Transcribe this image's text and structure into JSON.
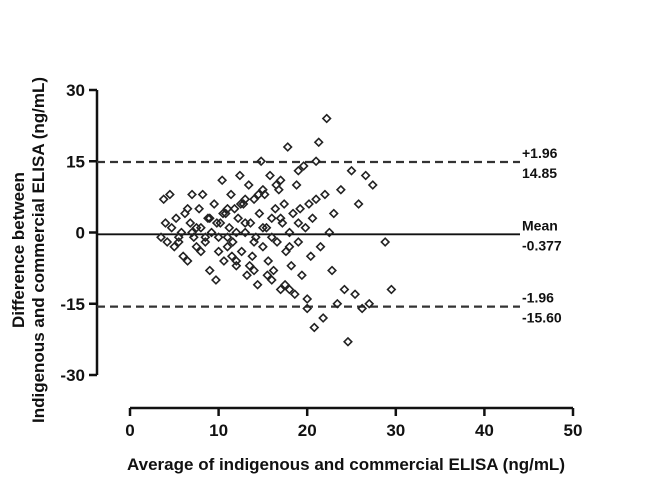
{
  "chart_data": {
    "type": "scatter",
    "title": "",
    "xlabel": "Average of indigenous and commercial ELISA (ng/mL)",
    "ylabel_lines": [
      "Difference between",
      "Indigenous and commercial ELISA (ng/mL)"
    ],
    "xlim": [
      0,
      50
    ],
    "ylim": [
      -30,
      30
    ],
    "x_ticks": [
      0,
      10,
      20,
      30,
      40,
      50
    ],
    "y_ticks": [
      30,
      15,
      0,
      -15,
      -30
    ],
    "grid": false,
    "marker": "open-diamond",
    "reference_lines": [
      {
        "name": "upper",
        "y": 14.85,
        "style": "dashed",
        "label_top": "+1.96",
        "label_bottom": "14.85"
      },
      {
        "name": "mean",
        "y": -0.377,
        "style": "solid",
        "label_top": "Mean",
        "label_bottom": "-0.377"
      },
      {
        "name": "lower",
        "y": -15.6,
        "style": "dashed",
        "label_top": "-1.96",
        "label_bottom": "-15.60"
      }
    ],
    "points": [
      [
        3.5,
        -1
      ],
      [
        3.8,
        7
      ],
      [
        4,
        2
      ],
      [
        4.2,
        -2
      ],
      [
        4.5,
        8
      ],
      [
        4.7,
        1
      ],
      [
        5,
        -3
      ],
      [
        5.2,
        3
      ],
      [
        5.5,
        -1
      ],
      [
        5.8,
        0
      ],
      [
        6,
        -5
      ],
      [
        6.2,
        4
      ],
      [
        6.5,
        -6
      ],
      [
        6.8,
        2
      ],
      [
        7,
        8
      ],
      [
        7.2,
        -1
      ],
      [
        7.5,
        1
      ],
      [
        7.8,
        5
      ],
      [
        8,
        -4
      ],
      [
        8.2,
        8
      ],
      [
        8.5,
        -2
      ],
      [
        8.8,
        3
      ],
      [
        9,
        -8
      ],
      [
        9.2,
        0
      ],
      [
        9.5,
        6
      ],
      [
        9.7,
        -10
      ],
      [
        10,
        -1
      ],
      [
        10.2,
        2
      ],
      [
        10.4,
        11
      ],
      [
        10.6,
        -6
      ],
      [
        10.8,
        4
      ],
      [
        11,
        -3
      ],
      [
        11.2,
        1
      ],
      [
        11.4,
        8
      ],
      [
        11.6,
        -2
      ],
      [
        11.8,
        5
      ],
      [
        12,
        -7
      ],
      [
        12.2,
        3
      ],
      [
        12.4,
        12
      ],
      [
        12.6,
        -4
      ],
      [
        12.8,
        6
      ],
      [
        13,
        0
      ],
      [
        13.2,
        -9
      ],
      [
        13.4,
        10
      ],
      [
        13.6,
        2
      ],
      [
        13.8,
        -5
      ],
      [
        14,
        7
      ],
      [
        14.2,
        -1
      ],
      [
        14.4,
        -11
      ],
      [
        14.6,
        4
      ],
      [
        14.8,
        15
      ],
      [
        15,
        -3
      ],
      [
        15.2,
        8
      ],
      [
        15.4,
        1
      ],
      [
        15.6,
        -6
      ],
      [
        15.8,
        12
      ],
      [
        16,
        3
      ],
      [
        16.2,
        -8
      ],
      [
        16.4,
        5
      ],
      [
        16.6,
        -2
      ],
      [
        16.8,
        9
      ],
      [
        17,
        -12
      ],
      [
        17.2,
        2
      ],
      [
        17.4,
        6
      ],
      [
        17.6,
        -4
      ],
      [
        17.8,
        18
      ],
      [
        18,
        0
      ],
      [
        18.2,
        -7
      ],
      [
        18.4,
        4
      ],
      [
        18.6,
        -13
      ],
      [
        18.8,
        10
      ],
      [
        19,
        -2
      ],
      [
        19.2,
        5
      ],
      [
        19.4,
        -9
      ],
      [
        19.6,
        14
      ],
      [
        19.8,
        1
      ],
      [
        20,
        -16
      ],
      [
        20.2,
        6
      ],
      [
        20.4,
        -5
      ],
      [
        20.6,
        3
      ],
      [
        20.8,
        -20
      ],
      [
        21,
        7
      ],
      [
        21.3,
        19
      ],
      [
        21.5,
        -3
      ],
      [
        21.8,
        -18
      ],
      [
        22,
        8
      ],
      [
        22.2,
        24
      ],
      [
        22.5,
        0
      ],
      [
        22.8,
        -8
      ],
      [
        23,
        4
      ],
      [
        23.4,
        -15
      ],
      [
        23.8,
        9
      ],
      [
        24.2,
        -12
      ],
      [
        24.6,
        -23
      ],
      [
        25,
        13
      ],
      [
        25.4,
        -13
      ],
      [
        25.8,
        6
      ],
      [
        26.2,
        -16
      ],
      [
        26.6,
        12
      ],
      [
        27,
        -15
      ],
      [
        27.4,
        10
      ],
      [
        28.8,
        -2
      ],
      [
        29.5,
        -12
      ],
      [
        8.5,
        -1
      ],
      [
        9.8,
        2
      ],
      [
        11,
        -1
      ],
      [
        12,
        0
      ],
      [
        13,
        2
      ],
      [
        14,
        -2
      ],
      [
        15,
        1
      ],
      [
        16,
        -1
      ],
      [
        17,
        3
      ],
      [
        18,
        -3
      ],
      [
        19,
        2
      ],
      [
        10.5,
        4
      ],
      [
        11.5,
        -5
      ],
      [
        12.5,
        6
      ],
      [
        13.5,
        -7
      ],
      [
        14.5,
        8
      ],
      [
        15.5,
        -9
      ],
      [
        16.5,
        10
      ],
      [
        17.5,
        -11
      ],
      [
        7.5,
        -3
      ],
      [
        6.5,
        5
      ],
      [
        5.5,
        -2
      ],
      [
        9,
        3
      ],
      [
        10,
        -4
      ],
      [
        11,
        5
      ],
      [
        12,
        -6
      ],
      [
        13,
        7
      ],
      [
        14,
        -8
      ],
      [
        15,
        9
      ],
      [
        16,
        -10
      ],
      [
        17,
        11
      ],
      [
        18,
        -12
      ],
      [
        19,
        13
      ],
      [
        20,
        -14
      ],
      [
        21,
        15
      ],
      [
        7,
        0
      ],
      [
        8,
        1
      ]
    ]
  }
}
